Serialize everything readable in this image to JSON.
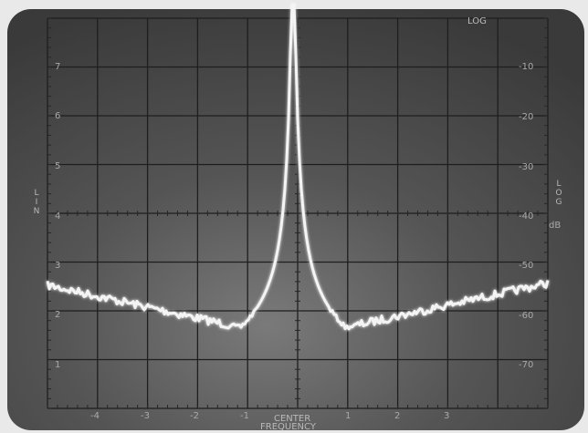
{
  "screen": {
    "top_right_label": "LOG",
    "left_axis_title": "LIN",
    "right_axis_title": "LOG",
    "right_axis_unit": "dB",
    "bottom_label_line1": "CENTER",
    "bottom_label_line2": "FREQUENCY",
    "lin_scale": [
      "7",
      "6",
      "5",
      "4",
      "3",
      "2",
      "1"
    ],
    "log_scale": [
      "-10",
      "-20",
      "-30",
      "-40",
      "-50",
      "-60",
      "-70"
    ],
    "freq_scale": [
      "-4",
      "-3",
      "-2",
      "-1",
      "1",
      "2",
      "3"
    ],
    "colors": {
      "background": "#e9e9e9",
      "screen": "#4b4b4b",
      "trace": "#f4f4f4",
      "graticule": "#1e1e1e"
    }
  }
}
